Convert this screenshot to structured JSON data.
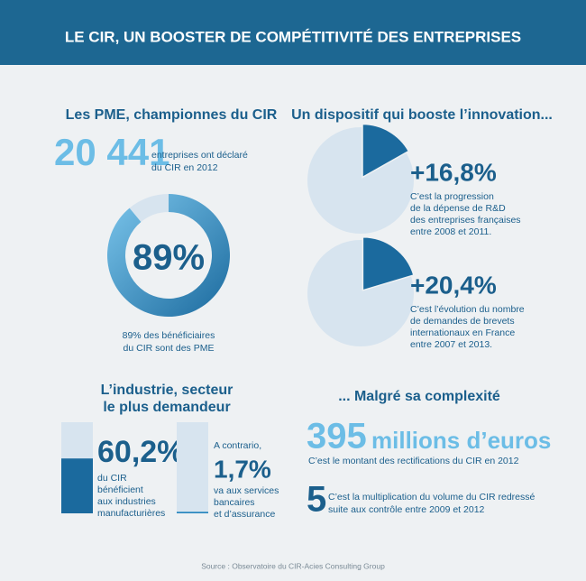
{
  "header": {
    "title": "LE CIR, UN BOOSTER DE COMPÉTITIVITÉ DES ENTREPRISES"
  },
  "pme": {
    "title": "Les PME, championnes du CIR",
    "count": "20 441",
    "count_text": [
      "entreprises ont déclaré",
      "du CIR en 2012"
    ],
    "share": {
      "value": 89,
      "label": "89%"
    },
    "share_text": [
      "89% des bénéficiaires",
      "du CIR sont des PME"
    ]
  },
  "innovation": {
    "title": "Un dispositif qui booste l’innovation...",
    "items": [
      {
        "value": 16.8,
        "label": "+16,8%",
        "text": [
          "C’est la progression",
          "de la dépense de R&D",
          "des entreprises françaises",
          "entre 2008 et 2011."
        ]
      },
      {
        "value": 20.4,
        "label": "+20,4%",
        "text": [
          "C’est l’évolution du nombre",
          "de demandes de brevets",
          "internationaux en France",
          "entre 2007 et 2013."
        ]
      }
    ]
  },
  "industry": {
    "title": [
      "L’industrie, secteur",
      "le plus demandeur"
    ],
    "items": [
      {
        "value": 60.2,
        "label": "60,2%",
        "text": [
          "du CIR",
          "bénéficient",
          "aux industries",
          "manufacturières"
        ]
      },
      {
        "intro": "A contrario,",
        "value": 1.7,
        "label": "1,7%",
        "text": [
          "va aux services",
          "bancaires",
          "et d’assurance"
        ]
      }
    ]
  },
  "complexity": {
    "title": "... Malgré sa complexité",
    "amount": {
      "number": "395",
      "unit": "millions d’euros",
      "text": "C’est le montant des rectifications du CIR en 2012"
    },
    "multiplier": {
      "number": "5",
      "text": [
        "C’est la multiplication du volume du CIR redressé",
        "suite aux contrôle entre 2009 et 2012"
      ]
    }
  },
  "source": "Source : Observatoire du CIR-Acies Consulting Group"
}
